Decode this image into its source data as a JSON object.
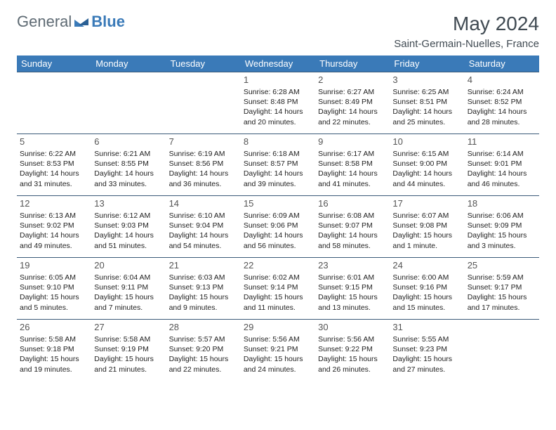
{
  "brand": {
    "first": "General",
    "second": "Blue"
  },
  "title": "May 2024",
  "location": "Saint-Germain-Nuelles, France",
  "colors": {
    "header_bg": "#3a7ab8",
    "header_text": "#ffffff",
    "border": "#3a5a78",
    "title_text": "#404a52",
    "body_text": "#222222",
    "background": "#ffffff"
  },
  "day_headers": [
    "Sunday",
    "Monday",
    "Tuesday",
    "Wednesday",
    "Thursday",
    "Friday",
    "Saturday"
  ],
  "weeks": [
    [
      null,
      null,
      null,
      {
        "n": "1",
        "sr": "Sunrise: 6:28 AM",
        "ss": "Sunset: 8:48 PM",
        "d1": "Daylight: 14 hours",
        "d2": "and 20 minutes."
      },
      {
        "n": "2",
        "sr": "Sunrise: 6:27 AM",
        "ss": "Sunset: 8:49 PM",
        "d1": "Daylight: 14 hours",
        "d2": "and 22 minutes."
      },
      {
        "n": "3",
        "sr": "Sunrise: 6:25 AM",
        "ss": "Sunset: 8:51 PM",
        "d1": "Daylight: 14 hours",
        "d2": "and 25 minutes."
      },
      {
        "n": "4",
        "sr": "Sunrise: 6:24 AM",
        "ss": "Sunset: 8:52 PM",
        "d1": "Daylight: 14 hours",
        "d2": "and 28 minutes."
      }
    ],
    [
      {
        "n": "5",
        "sr": "Sunrise: 6:22 AM",
        "ss": "Sunset: 8:53 PM",
        "d1": "Daylight: 14 hours",
        "d2": "and 31 minutes."
      },
      {
        "n": "6",
        "sr": "Sunrise: 6:21 AM",
        "ss": "Sunset: 8:55 PM",
        "d1": "Daylight: 14 hours",
        "d2": "and 33 minutes."
      },
      {
        "n": "7",
        "sr": "Sunrise: 6:19 AM",
        "ss": "Sunset: 8:56 PM",
        "d1": "Daylight: 14 hours",
        "d2": "and 36 minutes."
      },
      {
        "n": "8",
        "sr": "Sunrise: 6:18 AM",
        "ss": "Sunset: 8:57 PM",
        "d1": "Daylight: 14 hours",
        "d2": "and 39 minutes."
      },
      {
        "n": "9",
        "sr": "Sunrise: 6:17 AM",
        "ss": "Sunset: 8:58 PM",
        "d1": "Daylight: 14 hours",
        "d2": "and 41 minutes."
      },
      {
        "n": "10",
        "sr": "Sunrise: 6:15 AM",
        "ss": "Sunset: 9:00 PM",
        "d1": "Daylight: 14 hours",
        "d2": "and 44 minutes."
      },
      {
        "n": "11",
        "sr": "Sunrise: 6:14 AM",
        "ss": "Sunset: 9:01 PM",
        "d1": "Daylight: 14 hours",
        "d2": "and 46 minutes."
      }
    ],
    [
      {
        "n": "12",
        "sr": "Sunrise: 6:13 AM",
        "ss": "Sunset: 9:02 PM",
        "d1": "Daylight: 14 hours",
        "d2": "and 49 minutes."
      },
      {
        "n": "13",
        "sr": "Sunrise: 6:12 AM",
        "ss": "Sunset: 9:03 PM",
        "d1": "Daylight: 14 hours",
        "d2": "and 51 minutes."
      },
      {
        "n": "14",
        "sr": "Sunrise: 6:10 AM",
        "ss": "Sunset: 9:04 PM",
        "d1": "Daylight: 14 hours",
        "d2": "and 54 minutes."
      },
      {
        "n": "15",
        "sr": "Sunrise: 6:09 AM",
        "ss": "Sunset: 9:06 PM",
        "d1": "Daylight: 14 hours",
        "d2": "and 56 minutes."
      },
      {
        "n": "16",
        "sr": "Sunrise: 6:08 AM",
        "ss": "Sunset: 9:07 PM",
        "d1": "Daylight: 14 hours",
        "d2": "and 58 minutes."
      },
      {
        "n": "17",
        "sr": "Sunrise: 6:07 AM",
        "ss": "Sunset: 9:08 PM",
        "d1": "Daylight: 15 hours",
        "d2": "and 1 minute."
      },
      {
        "n": "18",
        "sr": "Sunrise: 6:06 AM",
        "ss": "Sunset: 9:09 PM",
        "d1": "Daylight: 15 hours",
        "d2": "and 3 minutes."
      }
    ],
    [
      {
        "n": "19",
        "sr": "Sunrise: 6:05 AM",
        "ss": "Sunset: 9:10 PM",
        "d1": "Daylight: 15 hours",
        "d2": "and 5 minutes."
      },
      {
        "n": "20",
        "sr": "Sunrise: 6:04 AM",
        "ss": "Sunset: 9:11 PM",
        "d1": "Daylight: 15 hours",
        "d2": "and 7 minutes."
      },
      {
        "n": "21",
        "sr": "Sunrise: 6:03 AM",
        "ss": "Sunset: 9:13 PM",
        "d1": "Daylight: 15 hours",
        "d2": "and 9 minutes."
      },
      {
        "n": "22",
        "sr": "Sunrise: 6:02 AM",
        "ss": "Sunset: 9:14 PM",
        "d1": "Daylight: 15 hours",
        "d2": "and 11 minutes."
      },
      {
        "n": "23",
        "sr": "Sunrise: 6:01 AM",
        "ss": "Sunset: 9:15 PM",
        "d1": "Daylight: 15 hours",
        "d2": "and 13 minutes."
      },
      {
        "n": "24",
        "sr": "Sunrise: 6:00 AM",
        "ss": "Sunset: 9:16 PM",
        "d1": "Daylight: 15 hours",
        "d2": "and 15 minutes."
      },
      {
        "n": "25",
        "sr": "Sunrise: 5:59 AM",
        "ss": "Sunset: 9:17 PM",
        "d1": "Daylight: 15 hours",
        "d2": "and 17 minutes."
      }
    ],
    [
      {
        "n": "26",
        "sr": "Sunrise: 5:58 AM",
        "ss": "Sunset: 9:18 PM",
        "d1": "Daylight: 15 hours",
        "d2": "and 19 minutes."
      },
      {
        "n": "27",
        "sr": "Sunrise: 5:58 AM",
        "ss": "Sunset: 9:19 PM",
        "d1": "Daylight: 15 hours",
        "d2": "and 21 minutes."
      },
      {
        "n": "28",
        "sr": "Sunrise: 5:57 AM",
        "ss": "Sunset: 9:20 PM",
        "d1": "Daylight: 15 hours",
        "d2": "and 22 minutes."
      },
      {
        "n": "29",
        "sr": "Sunrise: 5:56 AM",
        "ss": "Sunset: 9:21 PM",
        "d1": "Daylight: 15 hours",
        "d2": "and 24 minutes."
      },
      {
        "n": "30",
        "sr": "Sunrise: 5:56 AM",
        "ss": "Sunset: 9:22 PM",
        "d1": "Daylight: 15 hours",
        "d2": "and 26 minutes."
      },
      {
        "n": "31",
        "sr": "Sunrise: 5:55 AM",
        "ss": "Sunset: 9:23 PM",
        "d1": "Daylight: 15 hours",
        "d2": "and 27 minutes."
      },
      null
    ]
  ]
}
